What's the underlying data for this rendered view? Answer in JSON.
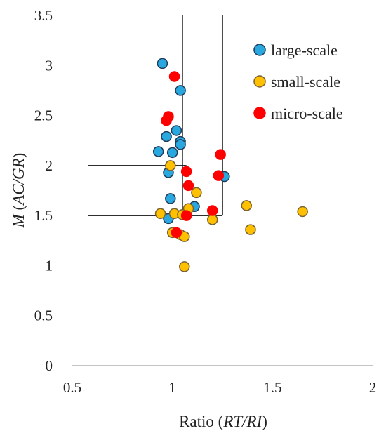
{
  "chart_data": {
    "type": "scatter",
    "xlabel_prefix": "Ratio (",
    "xlabel_italic": "RT/RI",
    "xlabel_suffix": ")",
    "ylabel_italic_1": "M",
    "ylabel_mid": " (",
    "ylabel_italic_2": "AC/GR",
    "ylabel_suffix": ")",
    "xlim": [
      0.5,
      2
    ],
    "ylim": [
      0,
      3.5
    ],
    "xticks": [
      0.5,
      1,
      1.5,
      2
    ],
    "xtick_labels": [
      "0.5",
      "1",
      "1.5",
      "2"
    ],
    "yticks": [
      0,
      0.5,
      1,
      1.5,
      2,
      2.5,
      3,
      3.5
    ],
    "ytick_labels": [
      "0",
      "0.5",
      "1",
      "1.5",
      "2",
      "2.5",
      "3",
      "3.5"
    ],
    "grid": false,
    "legend_position": "top-right",
    "reference_lines": [
      {
        "x1": 0.58,
        "y1": 2.0,
        "x2": 1.07,
        "y2": 2.0
      },
      {
        "x1": 0.58,
        "y1": 1.5,
        "x2": 1.25,
        "y2": 1.5
      },
      {
        "x1": 1.05,
        "y1": 1.5,
        "x2": 1.05,
        "y2": 3.5
      },
      {
        "x1": 1.25,
        "y1": 1.5,
        "x2": 1.25,
        "y2": 3.5
      }
    ],
    "series": [
      {
        "name": "large-scale",
        "color": "#29a8e0",
        "stroke": "#1f3b5a",
        "points": [
          [
            0.95,
            3.02
          ],
          [
            1.04,
            2.75
          ],
          [
            1.02,
            2.35
          ],
          [
            0.97,
            2.29
          ],
          [
            1.04,
            2.24
          ],
          [
            1.04,
            2.21
          ],
          [
            0.93,
            2.14
          ],
          [
            1.0,
            2.13
          ],
          [
            0.98,
            1.93
          ],
          [
            0.99,
            1.67
          ],
          [
            1.11,
            1.59
          ],
          [
            0.98,
            1.47
          ],
          [
            1.26,
            1.89
          ]
        ]
      },
      {
        "name": "small-scale",
        "color": "#ffc000",
        "stroke": "#7a6230",
        "points": [
          [
            0.99,
            2.0
          ],
          [
            1.12,
            1.73
          ],
          [
            1.08,
            1.57
          ],
          [
            1.37,
            1.6
          ],
          [
            1.65,
            1.54
          ],
          [
            0.94,
            1.52
          ],
          [
            1.01,
            1.52
          ],
          [
            1.05,
            1.51
          ],
          [
            1.2,
            1.46
          ],
          [
            1.39,
            1.36
          ],
          [
            1.0,
            1.33
          ],
          [
            1.04,
            1.31
          ],
          [
            1.06,
            1.29
          ],
          [
            1.06,
            0.99
          ]
        ]
      },
      {
        "name": "micro-scale",
        "color": "#ff0000",
        "stroke": "#ff0000",
        "points": [
          [
            1.01,
            2.89
          ],
          [
            0.98,
            2.49
          ],
          [
            0.97,
            2.45
          ],
          [
            1.24,
            2.11
          ],
          [
            1.07,
            1.94
          ],
          [
            1.23,
            1.9
          ],
          [
            1.08,
            1.8
          ],
          [
            1.2,
            1.55
          ],
          [
            1.07,
            1.5
          ],
          [
            1.02,
            1.33
          ]
        ]
      }
    ]
  }
}
